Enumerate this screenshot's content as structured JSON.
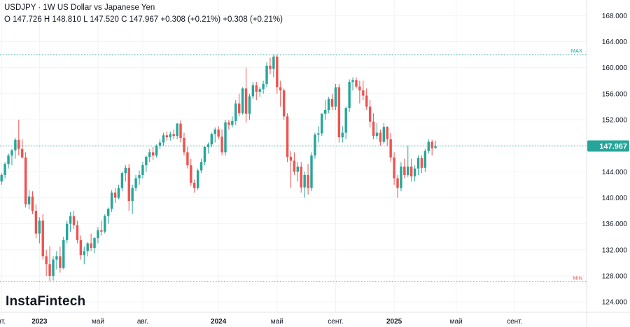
{
  "header": {
    "symbol": "USDJPY",
    "separator": "·",
    "interval": "1W",
    "description": "US Dollar vs Japanese Yen",
    "ohlc_text": "O 147.726 H 148.810 L 147.520 C 147.967 +0.308 (+0.21%) +0.308 (+0.21%)"
  },
  "logo": "InstaFintech",
  "colors": {
    "up": "#26a69a",
    "down": "#ef5350",
    "price_tag": "#26a69a",
    "grid": "#f0f3fa",
    "axis_text": "#131722",
    "max_line": "#26a69a",
    "min_line": "#ef5350"
  },
  "chart_data": {
    "type": "candlestick",
    "ylim": [
      122.4,
      170.4
    ],
    "y_ticks": [
      "124.000",
      "128.000",
      "132.000",
      "136.000",
      "140.000",
      "144.000",
      "148.000",
      "152.000",
      "156.000",
      "160.000",
      "164.000",
      "168.000"
    ],
    "x_tick_labels": [
      {
        "label": "нт.",
        "bar": 0,
        "bold": false
      },
      {
        "label": "2023",
        "bar": 11,
        "bold": true
      },
      {
        "label": "май",
        "bar": 28,
        "bold": false
      },
      {
        "label": "авг.",
        "bar": 41,
        "bold": false
      },
      {
        "label": "2024",
        "bar": 63,
        "bold": true
      },
      {
        "label": "май",
        "bar": 80,
        "bold": false
      },
      {
        "label": "сент.",
        "bar": 97,
        "bold": false
      },
      {
        "label": "2025",
        "bar": 114,
        "bold": true
      },
      {
        "label": "май",
        "bar": 132,
        "bold": false
      },
      {
        "label": "сент.",
        "bar": 149,
        "bold": false
      }
    ],
    "current_price": 147.967,
    "current_price_label": "147.967",
    "max_level": 162.0,
    "max_label": "MAX",
    "min_level": 127.1,
    "min_label": "MIN",
    "candles": [
      [
        142.5,
        143.8,
        142.0,
        143.5
      ],
      [
        143.5,
        145.5,
        143.0,
        145.2
      ],
      [
        145.2,
        146.8,
        144.5,
        146.5
      ],
      [
        146.5,
        147.5,
        145.0,
        147.3
      ],
      [
        147.3,
        149.2,
        146.0,
        148.9
      ],
      [
        148.9,
        152.0,
        146.5,
        147.5
      ],
      [
        147.5,
        149.0,
        146.0,
        146.2
      ],
      [
        146.2,
        147.0,
        138.5,
        139.0
      ],
      [
        139.0,
        141.2,
        138.2,
        140.2
      ],
      [
        140.2,
        141.0,
        137.5,
        138.0
      ],
      [
        138.0,
        139.0,
        133.8,
        134.5
      ],
      [
        134.5,
        137.0,
        133.0,
        136.5
      ],
      [
        136.5,
        137.5,
        130.5,
        131.0
      ],
      [
        131.0,
        132.0,
        128.0,
        129.8
      ],
      [
        129.8,
        132.6,
        127.2,
        128.0
      ],
      [
        128.0,
        131.0,
        127.3,
        130.5
      ],
      [
        130.5,
        131.8,
        129.0,
        131.0
      ],
      [
        131.0,
        132.5,
        128.5,
        129.2
      ],
      [
        129.2,
        134.0,
        129.0,
        133.5
      ],
      [
        133.5,
        136.5,
        133.0,
        136.0
      ],
      [
        136.0,
        137.8,
        134.8,
        137.2
      ],
      [
        137.2,
        138.0,
        135.2,
        135.8
      ],
      [
        135.8,
        136.5,
        133.0,
        133.5
      ],
      [
        133.5,
        134.2,
        130.5,
        131.2
      ],
      [
        131.2,
        132.5,
        129.8,
        131.8
      ],
      [
        131.8,
        133.2,
        131.0,
        133.0
      ],
      [
        133.0,
        134.5,
        131.8,
        132.3
      ],
      [
        132.3,
        134.0,
        131.5,
        133.8
      ],
      [
        133.8,
        135.5,
        133.0,
        135.0
      ],
      [
        135.0,
        136.5,
        134.2,
        134.8
      ],
      [
        134.8,
        137.5,
        134.5,
        137.2
      ],
      [
        137.2,
        138.5,
        136.0,
        138.3
      ],
      [
        138.3,
        141.2,
        137.8,
        140.8
      ],
      [
        140.8,
        141.5,
        139.2,
        140.0
      ],
      [
        140.0,
        142.0,
        139.8,
        141.5
      ],
      [
        141.5,
        144.0,
        141.0,
        143.8
      ],
      [
        143.8,
        145.0,
        142.5,
        144.6
      ],
      [
        144.6,
        145.2,
        138.0,
        139.5
      ],
      [
        139.5,
        142.0,
        137.5,
        141.5
      ],
      [
        141.5,
        143.5,
        141.0,
        143.0
      ],
      [
        143.0,
        144.2,
        142.0,
        143.5
      ],
      [
        143.5,
        145.5,
        143.0,
        145.0
      ],
      [
        145.0,
        146.5,
        144.0,
        146.3
      ],
      [
        146.3,
        147.5,
        145.5,
        147.0
      ],
      [
        147.0,
        147.8,
        145.8,
        146.5
      ],
      [
        146.5,
        148.2,
        146.2,
        148.0
      ],
      [
        148.0,
        149.0,
        147.5,
        148.5
      ],
      [
        148.5,
        150.0,
        148.0,
        149.6
      ],
      [
        149.6,
        150.2,
        148.8,
        149.3
      ],
      [
        149.3,
        150.2,
        148.8,
        149.8
      ],
      [
        149.8,
        150.5,
        149.0,
        149.5
      ],
      [
        149.5,
        151.5,
        149.0,
        151.4
      ],
      [
        151.4,
        151.9,
        148.5,
        149.2
      ],
      [
        149.2,
        150.0,
        146.5,
        147.0
      ],
      [
        147.0,
        147.8,
        144.5,
        145.0
      ],
      [
        145.0,
        146.0,
        141.8,
        142.3
      ],
      [
        142.3,
        142.8,
        140.8,
        141.5
      ],
      [
        141.5,
        144.5,
        141.2,
        144.2
      ],
      [
        144.2,
        146.0,
        143.8,
        145.5
      ],
      [
        145.5,
        148.0,
        145.0,
        147.8
      ],
      [
        147.8,
        148.5,
        146.8,
        148.2
      ],
      [
        148.2,
        150.0,
        147.8,
        149.8
      ],
      [
        149.8,
        150.8,
        148.5,
        150.5
      ],
      [
        150.5,
        151.0,
        149.0,
        149.4
      ],
      [
        149.4,
        150.5,
        146.5,
        147.0
      ],
      [
        147.0,
        152.0,
        146.5,
        151.6
      ],
      [
        151.6,
        152.0,
        150.5,
        151.2
      ],
      [
        151.2,
        152.5,
        150.8,
        151.8
      ],
      [
        151.8,
        155.0,
        151.2,
        154.5
      ],
      [
        154.5,
        156.0,
        152.5,
        153.0
      ],
      [
        153.0,
        157.0,
        152.8,
        156.8
      ],
      [
        156.8,
        160.0,
        151.5,
        152.9
      ],
      [
        152.9,
        156.0,
        152.0,
        155.6
      ],
      [
        155.6,
        157.8,
        155.2,
        157.3
      ],
      [
        157.3,
        157.8,
        155.0,
        156.3
      ],
      [
        156.3,
        157.0,
        155.5,
        156.7
      ],
      [
        156.7,
        158.0,
        156.0,
        157.5
      ],
      [
        157.5,
        160.8,
        157.0,
        160.3
      ],
      [
        160.3,
        161.5,
        159.0,
        159.8
      ],
      [
        159.8,
        162.0,
        158.5,
        161.7
      ],
      [
        161.7,
        162.0,
        156.0,
        157.0
      ],
      [
        157.0,
        158.0,
        154.0,
        156.5
      ],
      [
        156.5,
        156.8,
        152.0,
        152.5
      ],
      [
        152.5,
        153.0,
        145.5,
        146.3
      ],
      [
        146.3,
        147.2,
        141.5,
        145.7
      ],
      [
        145.7,
        147.0,
        143.5,
        144.0
      ],
      [
        144.0,
        145.5,
        142.5,
        144.8
      ],
      [
        144.8,
        145.5,
        140.8,
        141.6
      ],
      [
        141.6,
        144.0,
        140.0,
        143.5
      ],
      [
        143.5,
        145.2,
        140.5,
        141.5
      ],
      [
        141.5,
        147.0,
        141.0,
        146.5
      ],
      [
        146.5,
        150.0,
        146.0,
        149.7
      ],
      [
        149.7,
        151.0,
        148.5,
        149.9
      ],
      [
        149.9,
        153.0,
        149.5,
        152.9
      ],
      [
        152.9,
        155.0,
        152.0,
        153.5
      ],
      [
        153.5,
        155.5,
        153.0,
        155.2
      ],
      [
        155.2,
        156.0,
        153.5,
        154.0
      ],
      [
        154.0,
        157.5,
        153.5,
        157.0
      ],
      [
        157.0,
        157.5,
        148.5,
        149.3
      ],
      [
        149.3,
        151.0,
        148.5,
        150.0
      ],
      [
        150.0,
        154.0,
        149.0,
        153.8
      ],
      [
        153.8,
        158.2,
        153.2,
        157.8
      ],
      [
        157.8,
        158.5,
        156.5,
        158.1
      ],
      [
        158.1,
        158.5,
        156.8,
        157.1
      ],
      [
        157.1,
        158.0,
        154.5,
        156.5
      ],
      [
        156.5,
        158.0,
        155.0,
        155.7
      ],
      [
        155.7,
        156.8,
        153.5,
        154.0
      ],
      [
        154.0,
        155.0,
        150.8,
        151.7
      ],
      [
        151.7,
        153.0,
        149.0,
        149.5
      ],
      [
        149.5,
        151.5,
        149.0,
        150.0
      ],
      [
        150.0,
        150.5,
        148.0,
        148.6
      ],
      [
        148.6,
        151.5,
        148.3,
        150.9
      ],
      [
        150.9,
        151.0,
        148.0,
        149.0
      ],
      [
        149.0,
        150.0,
        145.5,
        146.2
      ],
      [
        146.2,
        147.0,
        142.0,
        143.0
      ],
      [
        143.0,
        143.5,
        140.0,
        141.5
      ],
      [
        141.5,
        145.5,
        141.0,
        144.8
      ],
      [
        144.8,
        146.0,
        143.0,
        143.5
      ],
      [
        143.5,
        148.0,
        143.2,
        144.8
      ],
      [
        144.8,
        146.0,
        142.5,
        143.3
      ],
      [
        143.3,
        145.0,
        142.5,
        144.5
      ],
      [
        144.5,
        146.5,
        143.5,
        146.1
      ],
      [
        146.1,
        146.5,
        143.8,
        144.6
      ],
      [
        144.6,
        147.5,
        144.0,
        147.2
      ],
      [
        147.2,
        149.0,
        146.8,
        148.6
      ],
      [
        148.6,
        148.9,
        146.5,
        147.6
      ],
      [
        147.7,
        148.8,
        147.5,
        147.9
      ]
    ]
  }
}
